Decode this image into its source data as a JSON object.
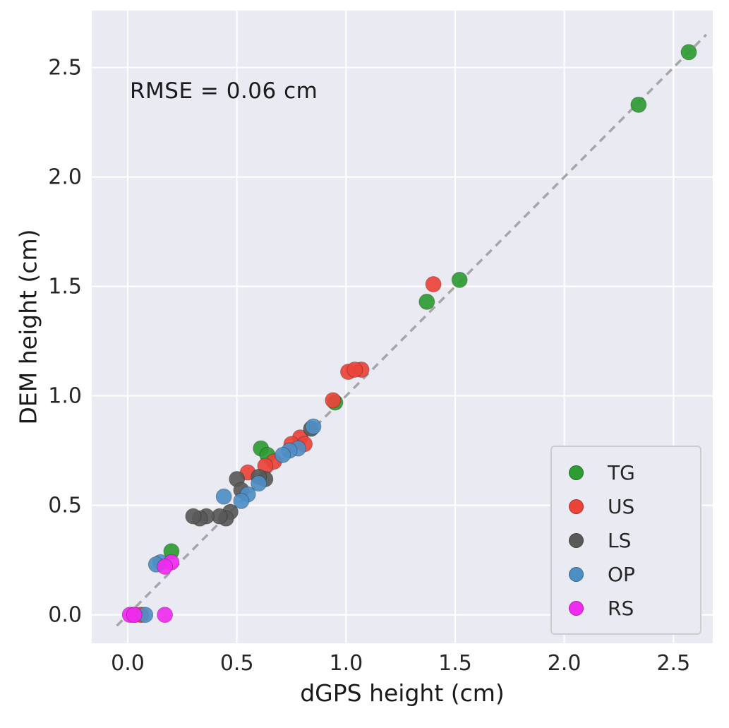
{
  "chart_data": {
    "type": "scatter",
    "title": "",
    "annotation": "RMSE = 0.06 cm",
    "xlabel": "dGPS height (cm)",
    "ylabel": "DEM height (cm)",
    "xlim": [
      -0.165,
      2.68
    ],
    "ylim": [
      -0.13,
      2.76
    ],
    "xticks": [
      0.0,
      0.5,
      1.0,
      1.5,
      2.0,
      2.5
    ],
    "yticks": [
      0.0,
      0.5,
      1.0,
      1.5,
      2.0,
      2.5
    ],
    "xtick_labels": [
      "0.0",
      "0.5",
      "1.0",
      "1.5",
      "2.0",
      "2.5"
    ],
    "ytick_labels": [
      "0.0",
      "0.5",
      "1.0",
      "1.5",
      "2.0",
      "2.5"
    ],
    "grid": true,
    "grid_color": "#ffffff",
    "background_color": "#eaeaf2",
    "legend_position": "lower right",
    "identity_line": {
      "style": "dashed",
      "color": "#a6a6a6",
      "from": [
        -0.05,
        -0.05
      ],
      "to": [
        2.65,
        2.65
      ]
    },
    "marker_radius": 11,
    "series": [
      {
        "name": "TG",
        "color": "#2e9b33",
        "points": [
          [
            2.57,
            2.57
          ],
          [
            2.34,
            2.33
          ],
          [
            1.52,
            1.53
          ],
          [
            1.37,
            1.43
          ],
          [
            0.95,
            0.97
          ],
          [
            0.61,
            0.76
          ],
          [
            0.64,
            0.73
          ],
          [
            0.2,
            0.29
          ]
        ]
      },
      {
        "name": "US",
        "color": "#ea4339",
        "points": [
          [
            1.4,
            1.51
          ],
          [
            1.07,
            1.12
          ],
          [
            1.01,
            1.11
          ],
          [
            1.04,
            1.12
          ],
          [
            0.94,
            0.98
          ],
          [
            0.79,
            0.81
          ],
          [
            0.81,
            0.78
          ],
          [
            0.75,
            0.78
          ],
          [
            0.67,
            0.7
          ],
          [
            0.63,
            0.68
          ],
          [
            0.55,
            0.65
          ],
          [
            0.03,
            0.0
          ],
          [
            0.06,
            0.0
          ]
        ]
      },
      {
        "name": "LS",
        "color": "#595959",
        "points": [
          [
            0.84,
            0.85
          ],
          [
            0.63,
            0.62
          ],
          [
            0.6,
            0.63
          ],
          [
            0.5,
            0.62
          ],
          [
            0.52,
            0.57
          ],
          [
            0.47,
            0.47
          ],
          [
            0.45,
            0.44
          ],
          [
            0.42,
            0.45
          ],
          [
            0.36,
            0.45
          ],
          [
            0.33,
            0.44
          ],
          [
            0.3,
            0.45
          ]
        ]
      },
      {
        "name": "OP",
        "color": "#4d8ec4",
        "points": [
          [
            0.85,
            0.86
          ],
          [
            0.78,
            0.76
          ],
          [
            0.74,
            0.75
          ],
          [
            0.71,
            0.73
          ],
          [
            0.6,
            0.6
          ],
          [
            0.55,
            0.55
          ],
          [
            0.52,
            0.52
          ],
          [
            0.44,
            0.54
          ],
          [
            0.15,
            0.24
          ],
          [
            0.13,
            0.23
          ],
          [
            0.08,
            0.0
          ]
        ]
      },
      {
        "name": "RS",
        "color": "#ef2bef",
        "points": [
          [
            0.2,
            0.24
          ],
          [
            0.17,
            0.22
          ],
          [
            0.01,
            0.0
          ],
          [
            0.03,
            0.0
          ],
          [
            0.17,
            0.0
          ]
        ]
      }
    ]
  }
}
